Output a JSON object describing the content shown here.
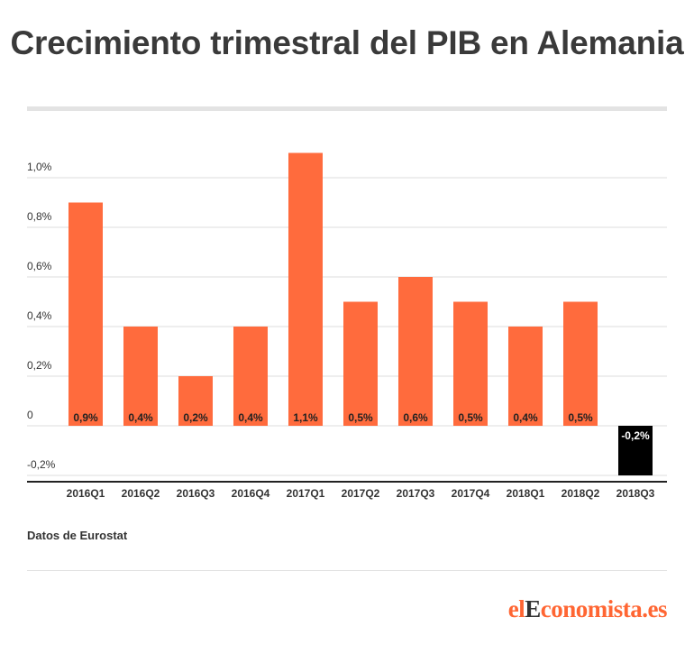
{
  "title": "Crecimiento trimestral del PIB en Alemania",
  "source": "Datos de Eurostat",
  "logo": {
    "part1": "el",
    "part2": "E",
    "part3": "conomista.es"
  },
  "colors": {
    "positive": "#ff6b3d",
    "negative": "#000000",
    "grid": "#dddddd",
    "axis": "#222222",
    "text": "#333333"
  },
  "chart_data": {
    "type": "bar",
    "title": "Crecimiento trimestral del PIB en Alemania",
    "xlabel": "",
    "ylabel": "",
    "categories": [
      "2016Q1",
      "2016Q2",
      "2016Q3",
      "2016Q4",
      "2017Q1",
      "2017Q2",
      "2017Q3",
      "2017Q4",
      "2018Q1",
      "2018Q2",
      "2018Q3"
    ],
    "values": [
      0.9,
      0.4,
      0.2,
      0.4,
      1.1,
      0.5,
      0.6,
      0.5,
      0.4,
      0.5,
      -0.2
    ],
    "data_labels": [
      "0,9%",
      "0,4%",
      "0,2%",
      "0,4%",
      "1,1%",
      "0,5%",
      "0,6%",
      "0,5%",
      "0,4%",
      "0,5%",
      "-0,2%"
    ],
    "yticks": [
      -0.2,
      0,
      0.2,
      0.4,
      0.6,
      0.8,
      1.0
    ],
    "ytick_labels": [
      "-0,2%",
      "0",
      "0,2%",
      "0,4%",
      "0,6%",
      "0,8%",
      "1,0%"
    ],
    "ylim": [
      -0.2,
      1.1
    ],
    "grid": true,
    "legend": "none"
  }
}
